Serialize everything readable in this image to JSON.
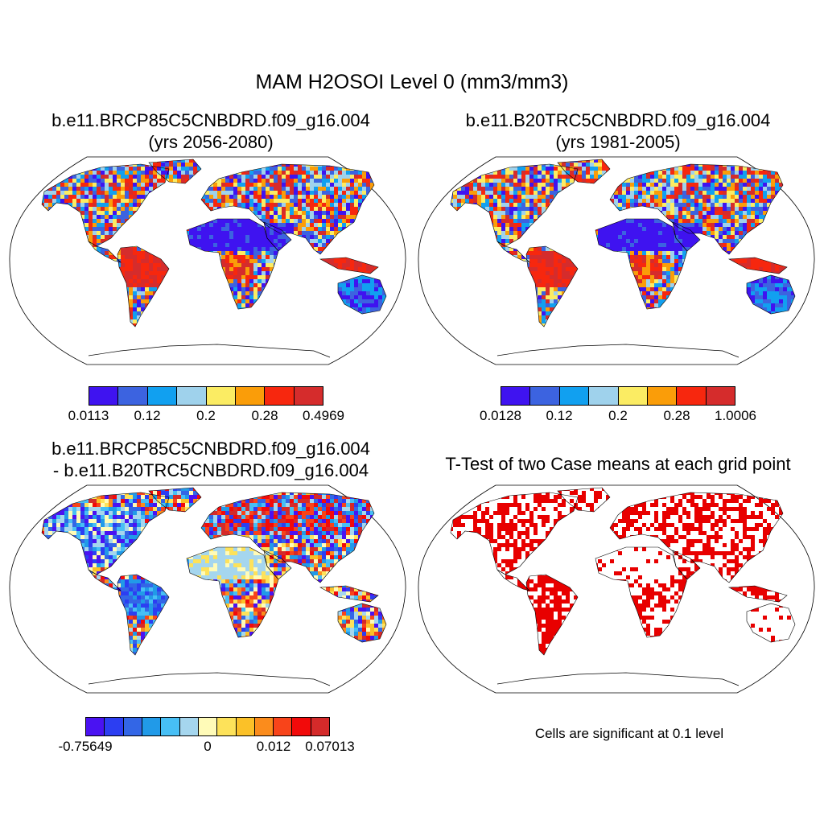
{
  "main_title": "MAM H2OSOI Level 0 (mm3/mm3)",
  "panels": [
    {
      "title_line1": "b.e11.BRCP85C5CNBDRD.f09_g16.004",
      "title_line2": "(yrs 2056-2080)",
      "colorbar": {
        "colors": [
          "#3f13f0",
          "#3c63e0",
          "#11a0f0",
          "#9fd2ec",
          "#fbec63",
          "#fa9d09",
          "#f7270e",
          "#d52c2c"
        ],
        "labels": [
          "0.0113",
          "0.12",
          "0.2",
          "0.28",
          "0.4969"
        ]
      }
    },
    {
      "title_line1": "b.e11.B20TRC5CNBDRD.f09_g16.004",
      "title_line2": "(yrs 1981-2005)",
      "colorbar": {
        "colors": [
          "#3f13f0",
          "#3c63e0",
          "#11a0f0",
          "#9fd2ec",
          "#fbec63",
          "#fa9d09",
          "#f7270e",
          "#d52c2c"
        ],
        "labels": [
          "0.0128",
          "0.12",
          "0.2",
          "0.28",
          "1.0006"
        ]
      }
    },
    {
      "title_line1": "b.e11.BRCP85C5CNBDRD.f09_g16.004",
      "title_line2": "- b.e11.B20TRC5CNBDRD.f09_g16.004",
      "colorbar": {
        "colors": [
          "#4a12f2",
          "#2c3ef2",
          "#3366e6",
          "#219ae8",
          "#47bff5",
          "#a5d6ee",
          "#fffbb8",
          "#fde25a",
          "#fbc128",
          "#fb8c1c",
          "#f8441a",
          "#f20a0a",
          "#d42a2a"
        ],
        "labels": [
          "-0.75649",
          "0",
          "0.012",
          "0.07013"
        ]
      }
    },
    {
      "title_line1": "T-Test of two Case means at each grid point",
      "note": "Cells are significant at 0.1 level",
      "significance_color": "#e80000"
    }
  ]
}
